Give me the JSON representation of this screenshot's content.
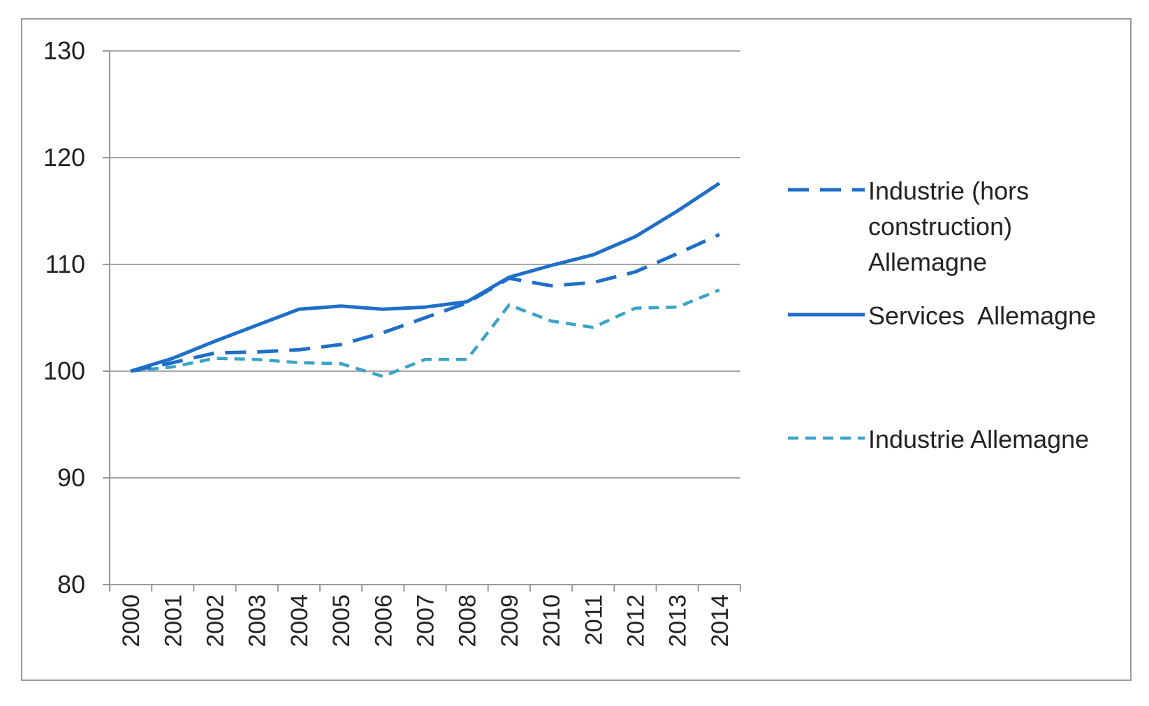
{
  "chart_data": {
    "type": "line",
    "title": "",
    "xlabel": "",
    "ylabel": "",
    "categories": [
      "2000",
      "2001",
      "2002",
      "2003",
      "2004",
      "2005",
      "2006",
      "2007",
      "2008",
      "2009",
      "2010",
      "2011",
      "2012",
      "2013",
      "2014"
    ],
    "ylim": [
      80,
      130
    ],
    "yticks": [
      80,
      90,
      100,
      110,
      120,
      130
    ],
    "grid": true,
    "legend_position": "right",
    "series": [
      {
        "name": "Industrie (hors construction) Allemagne",
        "legend_lines": [
          "Industrie (hors",
          "construction)",
          "Allemagne"
        ],
        "style": "long-dash",
        "color": "#1f6fc8",
        "values": [
          100,
          100.8,
          101.7,
          101.8,
          102.0,
          102.5,
          103.6,
          105.0,
          106.4,
          108.7,
          108.0,
          108.3,
          109.3,
          111.0,
          112.8
        ]
      },
      {
        "name": "Services  Allemagne",
        "legend_lines": [
          "Services  Allemagne"
        ],
        "style": "solid",
        "color": "#1f6fc8",
        "values": [
          100,
          101.2,
          102.8,
          104.3,
          105.8,
          106.1,
          105.8,
          106.0,
          106.5,
          108.8,
          109.9,
          110.9,
          112.6,
          115.0,
          117.6
        ]
      },
      {
        "name": "Industrie Allemagne",
        "legend_lines": [
          "Industrie Allemagne"
        ],
        "style": "short-dash",
        "color": "#3ba3c7",
        "values": [
          100,
          100.4,
          101.2,
          101.1,
          100.8,
          100.7,
          99.5,
          101.1,
          101.1,
          106.2,
          104.7,
          104.1,
          105.9,
          106.0,
          107.6
        ]
      }
    ]
  }
}
